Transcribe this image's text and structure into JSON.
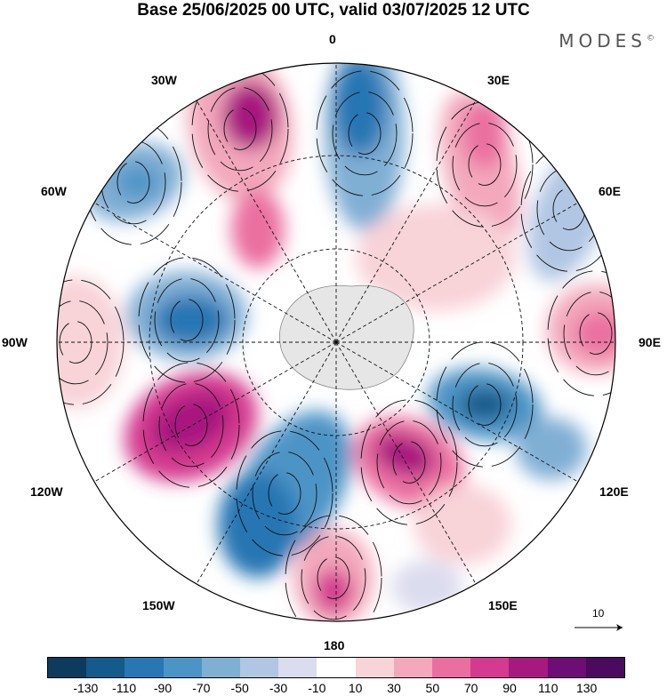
{
  "title": "Base 25/06/2025 00 UTC, valid 03/07/2025 12 UTC",
  "brand": "MODES",
  "brand_mark": "©",
  "map": {
    "projection": "south-polar-stereographic",
    "longitude_labels": {
      "lon_0": "0",
      "lon_30e": "30E",
      "lon_60e": "60E",
      "lon_90e": "90E",
      "lon_120e": "120E",
      "lon_150e": "150E",
      "lon_180": "180",
      "lon_150w": "150W",
      "lon_120w": "120W",
      "lon_90w": "90W",
      "lon_60w": "60W",
      "lon_30w": "30W"
    },
    "reference_vector_label": "10",
    "features": [
      "anomaly-shading",
      "streamlines",
      "coastlines",
      "lat-lon-grid"
    ]
  },
  "colorbar": {
    "ticks": [
      "-130",
      "-110",
      "-90",
      "-70",
      "-50",
      "-30",
      "-10",
      "10",
      "30",
      "50",
      "70",
      "90",
      "110",
      "130"
    ],
    "colors": [
      "#0d3b5e",
      "#145a8a",
      "#2876b3",
      "#4d94c6",
      "#80afd4",
      "#b1c6e3",
      "#dcdcef",
      "#ffffff",
      "#f8d3d8",
      "#f3a8bc",
      "#ea6fa0",
      "#d43a8f",
      "#a8197f",
      "#6c0e74",
      "#4b0a5e"
    ]
  }
}
